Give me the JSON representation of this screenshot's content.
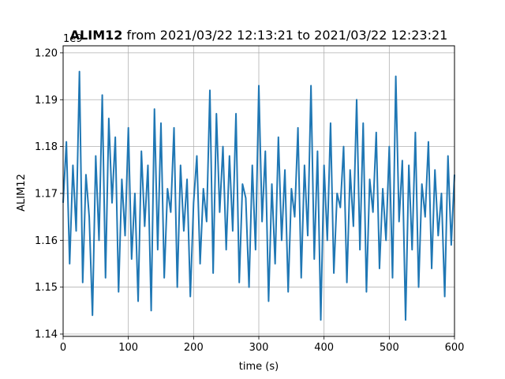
{
  "chart_data": {
    "type": "line",
    "title_bold": "ALIM12",
    "title_rest": " from 2021/03/22 12:13:21 to 2021/03/22 12:23:21",
    "xlabel": "time (s)",
    "ylabel": "ALIM12",
    "offset_text": "1e9",
    "xlim": [
      0,
      600
    ],
    "ylim": [
      1.1395,
      1.2015
    ],
    "xticks": [
      0,
      100,
      200,
      300,
      400,
      500,
      600
    ],
    "xtick_labels": [
      "0",
      "100",
      "200",
      "300",
      "400",
      "500",
      "600"
    ],
    "yticks": [
      1.14,
      1.15,
      1.16,
      1.17,
      1.18,
      1.19,
      1.2
    ],
    "ytick_labels": [
      "1.14",
      "1.15",
      "1.16",
      "1.17",
      "1.18",
      "1.19",
      "1.20"
    ],
    "grid": true,
    "line_color": "#1f77b4",
    "series": [
      {
        "x": [
          0,
          5,
          10,
          15,
          20,
          25,
          30,
          35,
          40,
          45,
          50,
          55,
          60,
          65,
          70,
          75,
          80,
          85,
          90,
          95,
          100,
          105,
          110,
          115,
          120,
          125,
          130,
          135,
          140,
          145,
          150,
          155,
          160,
          165,
          170,
          175,
          180,
          185,
          190,
          195,
          200,
          205,
          210,
          215,
          220,
          225,
          230,
          235,
          240,
          245,
          250,
          255,
          260,
          265,
          270,
          275,
          280,
          285,
          290,
          295,
          300,
          305,
          310,
          315,
          320,
          325,
          330,
          335,
          340,
          345,
          350,
          355,
          360,
          365,
          370,
          375,
          380,
          385,
          390,
          395,
          400,
          405,
          410,
          415,
          420,
          425,
          430,
          435,
          440,
          445,
          450,
          455,
          460,
          465,
          470,
          475,
          480,
          485,
          490,
          495,
          500,
          505,
          510,
          515,
          520,
          525,
          530,
          535,
          540,
          545,
          550,
          555,
          560,
          565,
          570,
          575,
          580,
          585,
          590,
          595,
          600
        ],
        "values": [
          1.168,
          1.181,
          1.155,
          1.176,
          1.162,
          1.196,
          1.151,
          1.174,
          1.165,
          1.144,
          1.178,
          1.16,
          1.191,
          1.152,
          1.186,
          1.168,
          1.182,
          1.149,
          1.173,
          1.161,
          1.184,
          1.156,
          1.17,
          1.147,
          1.179,
          1.163,
          1.176,
          1.145,
          1.188,
          1.158,
          1.185,
          1.152,
          1.171,
          1.166,
          1.184,
          1.15,
          1.176,
          1.162,
          1.173,
          1.148,
          1.168,
          1.178,
          1.155,
          1.171,
          1.164,
          1.192,
          1.153,
          1.187,
          1.166,
          1.18,
          1.158,
          1.178,
          1.162,
          1.187,
          1.151,
          1.172,
          1.169,
          1.15,
          1.176,
          1.158,
          1.193,
          1.164,
          1.179,
          1.147,
          1.172,
          1.155,
          1.182,
          1.16,
          1.175,
          1.149,
          1.171,
          1.165,
          1.184,
          1.152,
          1.176,
          1.161,
          1.193,
          1.156,
          1.179,
          1.143,
          1.176,
          1.16,
          1.185,
          1.153,
          1.17,
          1.167,
          1.18,
          1.151,
          1.175,
          1.163,
          1.19,
          1.158,
          1.185,
          1.149,
          1.173,
          1.166,
          1.183,
          1.154,
          1.171,
          1.16,
          1.18,
          1.152,
          1.195,
          1.164,
          1.177,
          1.143,
          1.176,
          1.158,
          1.183,
          1.15,
          1.172,
          1.165,
          1.181,
          1.154,
          1.175,
          1.161,
          1.17,
          1.148,
          1.178,
          1.159,
          1.174
        ]
      }
    ]
  }
}
